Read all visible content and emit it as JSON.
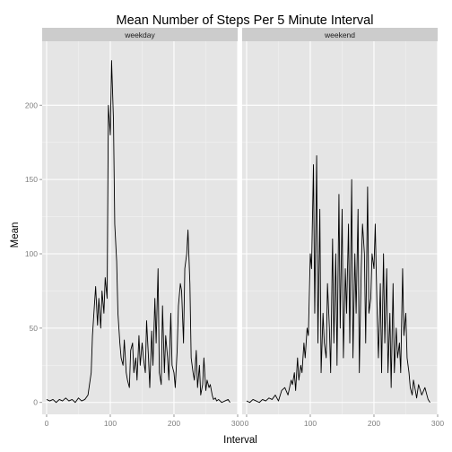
{
  "chart_data": {
    "type": "line",
    "title": "Mean Number of Steps Per 5 Minute Interval",
    "xlabel": "Interval",
    "ylabel": "Mean",
    "xlim": [
      -7,
      300
    ],
    "ylim": [
      -8,
      243
    ],
    "x_ticks": [
      0,
      100,
      200,
      300
    ],
    "y_ticks": [
      0,
      50,
      100,
      150,
      200
    ],
    "grid": true,
    "colors": {
      "panel_background": "#e5e5e5",
      "strip_background": "#cccccc",
      "grid_major": "#ffffff",
      "grid_minor": "#f2f2f2",
      "line": "#000000"
    },
    "panels": [
      {
        "name": "weekday",
        "series": [
          {
            "x": [
              0,
              5,
              10,
              15,
              20,
              25,
              30,
              35,
              40,
              45,
              50,
              55,
              60,
              65,
              70,
              72,
              75,
              77,
              80,
              82,
              85,
              87,
              90,
              92,
              95,
              97,
              100,
              102,
              105,
              107,
              110,
              112,
              115,
              117,
              120,
              122,
              125,
              127,
              130,
              132,
              135,
              137,
              140,
              142,
              145,
              147,
              150,
              152,
              155,
              157,
              160,
              162,
              165,
              167,
              170,
              172,
              175,
              177,
              180,
              182,
              185,
              187,
              190,
              192,
              195,
              197,
              200,
              202,
              205,
              207,
              210,
              212,
              215,
              217,
              220,
              222,
              225,
              227,
              230,
              232,
              235,
              237,
              240,
              242,
              245,
              247,
              250,
              252,
              255,
              257,
              260,
              262,
              265,
              267,
              270,
              275,
              280,
              285,
              288
            ],
            "y": [
              2,
              1,
              2,
              0,
              2,
              1,
              3,
              1,
              2,
              0,
              3,
              1,
              2,
              5,
              20,
              45,
              65,
              78,
              52,
              70,
              50,
              75,
              60,
              84,
              70,
              200,
              180,
              230,
              190,
              120,
              95,
              60,
              40,
              30,
              25,
              42,
              20,
              15,
              10,
              35,
              40,
              20,
              30,
              15,
              45,
              25,
              40,
              30,
              20,
              55,
              30,
              10,
              48,
              25,
              70,
              40,
              90,
              20,
              12,
              65,
              20,
              45,
              30,
              15,
              60,
              25,
              20,
              10,
              35,
              65,
              80,
              75,
              40,
              90,
              100,
              116,
              80,
              30,
              20,
              15,
              35,
              10,
              25,
              5,
              12,
              30,
              8,
              15,
              10,
              12,
              5,
              2,
              3,
              1,
              2,
              0,
              1,
              2,
              0
            ]
          }
        ]
      },
      {
        "name": "weekend",
        "series": [
          {
            "x": [
              0,
              5,
              10,
              15,
              20,
              25,
              30,
              35,
              40,
              45,
              50,
              55,
              60,
              65,
              70,
              72,
              75,
              77,
              80,
              82,
              85,
              87,
              90,
              92,
              95,
              97,
              100,
              102,
              105,
              107,
              110,
              112,
              115,
              117,
              120,
              122,
              125,
              127,
              130,
              132,
              135,
              137,
              140,
              142,
              145,
              147,
              150,
              152,
              155,
              157,
              160,
              162,
              165,
              167,
              170,
              172,
              175,
              177,
              180,
              182,
              185,
              187,
              190,
              192,
              195,
              197,
              200,
              202,
              205,
              207,
              210,
              212,
              215,
              217,
              220,
              222,
              225,
              227,
              230,
              232,
              235,
              237,
              240,
              242,
              245,
              247,
              250,
              252,
              255,
              257,
              260,
              262,
              265,
              267,
              270,
              275,
              280,
              285,
              288
            ],
            "y": [
              1,
              0,
              2,
              1,
              0,
              2,
              1,
              3,
              2,
              5,
              1,
              8,
              10,
              5,
              15,
              12,
              20,
              8,
              30,
              15,
              25,
              20,
              40,
              30,
              50,
              45,
              100,
              90,
              160,
              60,
              166,
              40,
              130,
              20,
              60,
              40,
              30,
              80,
              50,
              20,
              110,
              40,
              100,
              25,
              140,
              50,
              130,
              30,
              90,
              60,
              120,
              40,
              150,
              30,
              100,
              60,
              130,
              20,
              90,
              120,
              100,
              40,
              145,
              60,
              70,
              100,
              90,
              120,
              60,
              30,
              80,
              20,
              100,
              40,
              90,
              20,
              60,
              10,
              80,
              20,
              50,
              30,
              40,
              20,
              90,
              45,
              60,
              30,
              20,
              10,
              5,
              15,
              8,
              3,
              12,
              5,
              10,
              2,
              0
            ]
          }
        ]
      }
    ]
  }
}
